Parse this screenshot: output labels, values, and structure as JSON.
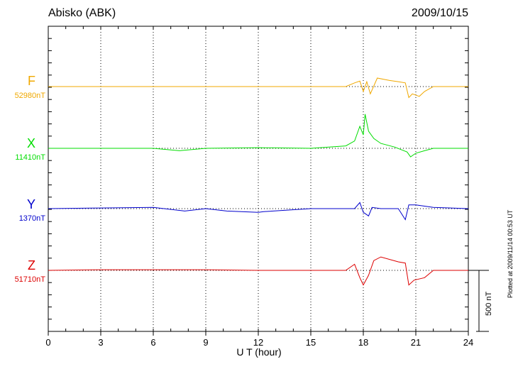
{
  "header": {
    "station": "Abisko (ABK)",
    "date": "2009/10/15"
  },
  "footer": {
    "plotted_note": "Plotted at 2009/11/14 00:53 UT"
  },
  "colors": {
    "F": "#f0a800",
    "X": "#00dd00",
    "Y": "#0000cc",
    "Z": "#dd0000",
    "axis": "#000000"
  },
  "chart_data": {
    "type": "line",
    "title": "Abisko (ABK)",
    "xlabel": "U T (hour)",
    "ylabel": "",
    "xlim": [
      0,
      24
    ],
    "x_ticks": [
      "0",
      "3",
      "6",
      "9",
      "12",
      "15",
      "18",
      "21",
      "24"
    ],
    "scale_bar": {
      "label": "500 nT",
      "value_nT": 500
    },
    "grid": "dotted vertical lines every 3 hours; dotted baseline per channel",
    "series": [
      {
        "name": "F",
        "baseline_label": "52980nT",
        "x": [
          0,
          3,
          6,
          9,
          12,
          15,
          17,
          17.5,
          17.8,
          18.0,
          18.2,
          18.4,
          18.8,
          19.5,
          20.0,
          20.4,
          20.6,
          20.8,
          21.2,
          21.5,
          22,
          24
        ],
        "y": [
          0,
          0,
          0,
          0,
          0,
          0,
          0,
          30,
          45,
          -40,
          40,
          -60,
          70,
          50,
          40,
          30,
          -90,
          -60,
          -80,
          -40,
          0,
          0
        ]
      },
      {
        "name": "X",
        "baseline_label": "11410nT",
        "x": [
          0,
          3,
          6,
          7.5,
          9,
          12,
          15,
          17,
          17.5,
          17.8,
          18.0,
          18.1,
          18.3,
          18.6,
          19,
          19.8,
          20.5,
          20.7,
          21,
          21.5,
          22,
          24
        ],
        "y": [
          0,
          0,
          0,
          -20,
          0,
          5,
          0,
          20,
          60,
          180,
          110,
          280,
          140,
          80,
          40,
          10,
          -30,
          -70,
          -40,
          -20,
          0,
          0
        ]
      },
      {
        "name": "Y",
        "baseline_label": "1370nT",
        "x": [
          0,
          3,
          6,
          7.8,
          9,
          10.2,
          12,
          12.3,
          15,
          17.5,
          17.8,
          18.0,
          18.3,
          18.5,
          19,
          20,
          20.4,
          20.6,
          21,
          22,
          24
        ],
        "y": [
          0,
          5,
          10,
          -20,
          0,
          -20,
          -30,
          -25,
          0,
          0,
          50,
          -30,
          -60,
          10,
          0,
          0,
          -90,
          30,
          30,
          10,
          0
        ]
      },
      {
        "name": "Z",
        "baseline_label": "51710nT",
        "x": [
          0,
          3,
          6,
          9,
          12,
          15,
          17,
          17.5,
          17.8,
          18.0,
          18.3,
          18.6,
          19,
          20,
          20.4,
          20.6,
          20.9,
          21.5,
          22,
          24
        ],
        "y": [
          0,
          5,
          5,
          5,
          0,
          0,
          0,
          50,
          -60,
          -120,
          -40,
          80,
          110,
          70,
          60,
          -120,
          -80,
          -60,
          0,
          0
        ]
      }
    ]
  }
}
